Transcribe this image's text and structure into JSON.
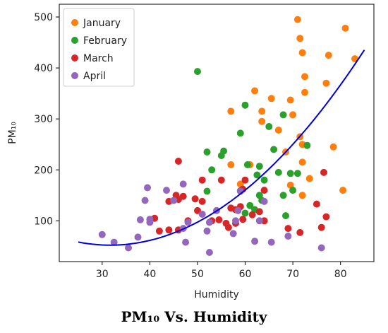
{
  "caption": "PM₁₀ Vs. Humidity",
  "chart_data": {
    "type": "scatter",
    "xlabel": "Humidity",
    "ylabel": "PM₁₀",
    "xlim": [
      21,
      87
    ],
    "ylim": [
      20,
      525
    ],
    "xticks": [
      30,
      40,
      50,
      60,
      70,
      80
    ],
    "yticks": [
      100,
      200,
      300,
      400,
      500
    ],
    "legend_position": "top-left",
    "grid": false,
    "series": [
      {
        "name": "January",
        "color": "#ff7f0e",
        "points": [
          [
            57,
            315
          ],
          [
            59,
            172
          ],
          [
            57,
            210
          ],
          [
            62,
            355
          ],
          [
            63.5,
            315
          ],
          [
            63.5,
            295
          ],
          [
            65.5,
            340
          ],
          [
            67,
            278
          ],
          [
            68.5,
            235
          ],
          [
            69.5,
            337
          ],
          [
            70,
            308
          ],
          [
            71,
            495
          ],
          [
            71.5,
            458
          ],
          [
            72,
            430
          ],
          [
            72.5,
            383
          ],
          [
            72.5,
            352
          ],
          [
            73.5,
            183
          ],
          [
            77,
            370
          ],
          [
            77.5,
            425
          ],
          [
            78.5,
            245
          ],
          [
            80.5,
            160
          ],
          [
            81,
            478
          ],
          [
            83,
            418
          ],
          [
            71.5,
            265
          ],
          [
            72,
            250
          ],
          [
            72,
            215
          ],
          [
            72,
            150
          ],
          [
            69.5,
            170
          ],
          [
            61,
            210
          ]
        ]
      },
      {
        "name": "February",
        "color": "#2ca02c",
        "points": [
          [
            50,
            393
          ],
          [
            52,
            235
          ],
          [
            53,
            200
          ],
          [
            55,
            228
          ],
          [
            55.5,
            237
          ],
          [
            52,
            158
          ],
          [
            59,
            159
          ],
          [
            59,
            272
          ],
          [
            60,
            327
          ],
          [
            60.5,
            210
          ],
          [
            61,
            130
          ],
          [
            62.5,
            190
          ],
          [
            63,
            150
          ],
          [
            63,
            207
          ],
          [
            63.5,
            140
          ],
          [
            62,
            122
          ],
          [
            65,
            285
          ],
          [
            66,
            240
          ],
          [
            67,
            195
          ],
          [
            68,
            308
          ],
          [
            68,
            150
          ],
          [
            68.5,
            110
          ],
          [
            69.5,
            193
          ],
          [
            70,
            160
          ],
          [
            71,
            193
          ],
          [
            73,
            248
          ],
          [
            60,
            115
          ],
          [
            64,
            180
          ]
        ]
      },
      {
        "name": "March",
        "color": "#d62728",
        "points": [
          [
            41,
            105
          ],
          [
            42,
            80
          ],
          [
            44,
            82
          ],
          [
            44,
            138
          ],
          [
            45.5,
            150
          ],
          [
            46,
            217
          ],
          [
            46,
            82
          ],
          [
            47,
            148
          ],
          [
            48,
            100
          ],
          [
            49.5,
            143
          ],
          [
            50,
            120
          ],
          [
            51,
            138
          ],
          [
            51,
            180
          ],
          [
            53,
            100
          ],
          [
            54.5,
            102
          ],
          [
            55,
            180
          ],
          [
            56,
            95
          ],
          [
            56.5,
            87
          ],
          [
            57,
            125
          ],
          [
            58,
            95
          ],
          [
            58,
            122
          ],
          [
            59,
            128
          ],
          [
            59.5,
            103
          ],
          [
            59.5,
            162
          ],
          [
            60,
            180
          ],
          [
            61.5,
            112
          ],
          [
            63,
            118
          ],
          [
            64,
            160
          ],
          [
            64,
            100
          ],
          [
            69,
            85
          ],
          [
            71.5,
            77
          ],
          [
            75,
            133
          ],
          [
            76,
            87
          ],
          [
            76.5,
            195
          ],
          [
            77,
            108
          ],
          [
            46,
            142
          ]
        ]
      },
      {
        "name": "April",
        "color": "#9467bd",
        "points": [
          [
            30,
            73
          ],
          [
            32.5,
            58
          ],
          [
            35.5,
            47
          ],
          [
            37.5,
            68
          ],
          [
            38,
            102
          ],
          [
            39,
            140
          ],
          [
            39.5,
            165
          ],
          [
            40,
            97
          ],
          [
            40,
            103
          ],
          [
            43.5,
            160
          ],
          [
            45,
            140
          ],
          [
            47,
            172
          ],
          [
            47,
            85
          ],
          [
            47.5,
            58
          ],
          [
            48,
            97
          ],
          [
            51,
            113
          ],
          [
            52,
            80
          ],
          [
            52.5,
            38
          ],
          [
            54,
            120
          ],
          [
            57.5,
            75
          ],
          [
            58,
            100
          ],
          [
            58.5,
            120
          ],
          [
            59,
            158
          ],
          [
            62,
            60
          ],
          [
            63,
            100
          ],
          [
            64,
            138
          ],
          [
            65.5,
            58
          ],
          [
            69,
            70
          ],
          [
            76,
            47
          ],
          [
            52.5,
            97
          ]
        ]
      }
    ],
    "fit_line": {
      "color": "#0000dd",
      "x_range": [
        25,
        85
      ],
      "coefficients": [
        187.7,
        -8.545,
        0.1348
      ]
    }
  }
}
